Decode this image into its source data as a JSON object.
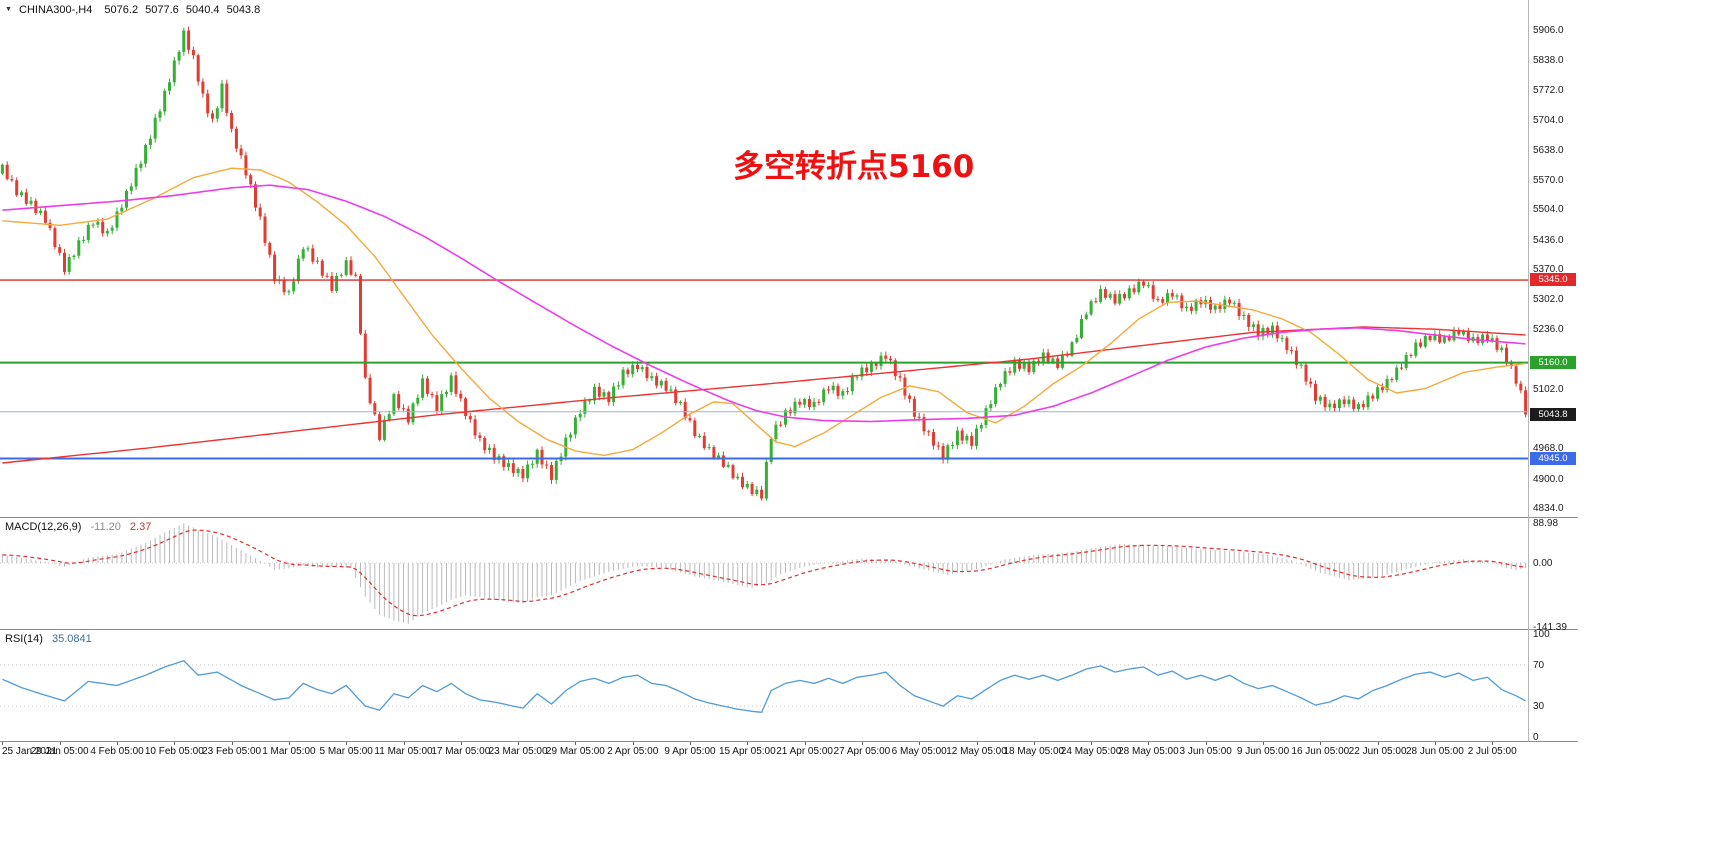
{
  "header": {
    "expander_icon": "▼",
    "symbol_tf": "CHINA300-,H4",
    "open": "5076.2",
    "high": "5077.6",
    "low": "5040.4",
    "close": "5043.8"
  },
  "annotation": {
    "text": "多空转折点5160",
    "color": "#ee1111"
  },
  "price_axis": {
    "min": 4834,
    "max": 5906,
    "ticks": [
      5906,
      5838,
      5772,
      5704,
      5638,
      5570,
      5504,
      5436,
      5370,
      5302,
      5236,
      5102,
      4968,
      4900,
      4834
    ],
    "tags": [
      {
        "label": "5345.0",
        "price": 5345,
        "bg": "#e22828",
        "fg": "#ffffff"
      },
      {
        "label": "5160.0",
        "price": 5160,
        "bg": "#2aa12a",
        "fg": "#ffffff"
      },
      {
        "label": "4945.0",
        "price": 4945,
        "bg": "#3d6be8",
        "fg": "#ffffff"
      },
      {
        "label": "5043.8",
        "price": 5043.8,
        "bg": "#1c1c1c",
        "fg": "#ffffff"
      }
    ]
  },
  "hlines": [
    {
      "price": 5345,
      "color": "#e22828",
      "width": 1.4
    },
    {
      "price": 5160,
      "color": "#2aa12a",
      "width": 2
    },
    {
      "price": 4945,
      "color": "#3d6be8",
      "width": 2
    },
    {
      "price": 5050,
      "color": "#9db3cf",
      "width": 1
    }
  ],
  "time_axis": {
    "labels": [
      "25 Jan 2021",
      "29 Jan 05:00",
      "4 Feb 05:00",
      "10 Feb 05:00",
      "23 Feb 05:00",
      "1 Mar 05:00",
      "5 Mar 05:00",
      "11 Mar 05:00",
      "17 Mar 05:00",
      "23 Mar 05:00",
      "29 Mar 05:00",
      "2 Apr 05:00",
      "9 Apr 05:00",
      "15 Apr 05:00",
      "21 Apr 05:00",
      "27 Apr 05:00",
      "6 May 05:00",
      "12 May 05:00",
      "18 May 05:00",
      "24 May 05:00",
      "28 May 05:00",
      "3 Jun 05:00",
      "9 Jun 05:00",
      "16 Jun 05:00",
      "22 Jun 05:00",
      "28 Jun 05:00",
      "2 Jul 05:00"
    ]
  },
  "macd_panel": {
    "title": "MACD(12,26,9)",
    "main_value": "-11.20",
    "signal_value": "2.37",
    "axis_ticks": [
      88.98,
      0,
      -141.39
    ],
    "histogram_color": "#b9b9b9",
    "signal_color": "#e03030"
  },
  "rsi_panel": {
    "title": "RSI(14)",
    "value": "35.0841",
    "axis_ticks": [
      100,
      70,
      30,
      0
    ],
    "levels": [
      70,
      30
    ],
    "line_color": "#4f9bd8"
  },
  "chart_data": {
    "type": "candlestick",
    "symbol": "CHINA300-",
    "timeframe": "H4",
    "date_range": [
      "25 Jan 2021",
      "2 Jul 2021"
    ],
    "last_bar": {
      "open": 5076.2,
      "high": 5077.6,
      "low": 5040.4,
      "close": 5043.8
    },
    "ylim": [
      4834,
      5906
    ],
    "n_bars": 320,
    "up_color": "#35b035",
    "down_color": "#e03c31",
    "ma_fast_color": "#f5a93c",
    "ma_mid_color": "#ea3ee8",
    "ma_slow_color": "#ee3333",
    "close_path": [
      [
        0,
        5600
      ],
      [
        3,
        5545
      ],
      [
        6,
        5515
      ],
      [
        9,
        5480
      ],
      [
        13,
        5368
      ],
      [
        16,
        5425
      ],
      [
        19,
        5478
      ],
      [
        22,
        5450
      ],
      [
        26,
        5540
      ],
      [
        30,
        5640
      ],
      [
        34,
        5760
      ],
      [
        38,
        5895
      ],
      [
        40,
        5840
      ],
      [
        42,
        5755
      ],
      [
        44,
        5700
      ],
      [
        46,
        5780
      ],
      [
        48,
        5680
      ],
      [
        51,
        5590
      ],
      [
        54,
        5480
      ],
      [
        57,
        5350
      ],
      [
        60,
        5310
      ],
      [
        63,
        5420
      ],
      [
        66,
        5380
      ],
      [
        69,
        5330
      ],
      [
        72,
        5385
      ],
      [
        74,
        5350
      ],
      [
        76,
        5120
      ],
      [
        79,
        4995
      ],
      [
        82,
        5080
      ],
      [
        85,
        5030
      ],
      [
        88,
        5115
      ],
      [
        91,
        5060
      ],
      [
        94,
        5125
      ],
      [
        97,
        5050
      ],
      [
        100,
        4985
      ],
      [
        103,
        4950
      ],
      [
        106,
        4925
      ],
      [
        109,
        4905
      ],
      [
        112,
        4955
      ],
      [
        115,
        4905
      ],
      [
        118,
        4985
      ],
      [
        121,
        5055
      ],
      [
        124,
        5100
      ],
      [
        127,
        5080
      ],
      [
        130,
        5135
      ],
      [
        133,
        5150
      ],
      [
        136,
        5120
      ],
      [
        139,
        5105
      ],
      [
        142,
        5065
      ],
      [
        145,
        5005
      ],
      [
        148,
        4965
      ],
      [
        151,
        4935
      ],
      [
        154,
        4895
      ],
      [
        157,
        4870
      ],
      [
        159,
        4860
      ],
      [
        161,
        4995
      ],
      [
        164,
        5045
      ],
      [
        167,
        5075
      ],
      [
        170,
        5068
      ],
      [
        173,
        5108
      ],
      [
        176,
        5088
      ],
      [
        179,
        5135
      ],
      [
        182,
        5148
      ],
      [
        185,
        5175
      ],
      [
        188,
        5118
      ],
      [
        191,
        5048
      ],
      [
        194,
        5000
      ],
      [
        197,
        4952
      ],
      [
        200,
        5000
      ],
      [
        203,
        4980
      ],
      [
        206,
        5048
      ],
      [
        209,
        5118
      ],
      [
        212,
        5158
      ],
      [
        215,
        5148
      ],
      [
        218,
        5178
      ],
      [
        221,
        5158
      ],
      [
        224,
        5198
      ],
      [
        227,
        5275
      ],
      [
        230,
        5315
      ],
      [
        233,
        5298
      ],
      [
        236,
        5318
      ],
      [
        239,
        5342
      ],
      [
        242,
        5298
      ],
      [
        245,
        5318
      ],
      [
        248,
        5278
      ],
      [
        251,
        5298
      ],
      [
        254,
        5278
      ],
      [
        257,
        5298
      ],
      [
        260,
        5258
      ],
      [
        263,
        5228
      ],
      [
        266,
        5238
      ],
      [
        269,
        5198
      ],
      [
        272,
        5148
      ],
      [
        275,
        5082
      ],
      [
        278,
        5058
      ],
      [
        281,
        5072
      ],
      [
        284,
        5058
      ],
      [
        287,
        5088
      ],
      [
        290,
        5118
      ],
      [
        293,
        5158
      ],
      [
        296,
        5198
      ],
      [
        299,
        5218
      ],
      [
        302,
        5208
      ],
      [
        305,
        5228
      ],
      [
        308,
        5208
      ],
      [
        311,
        5218
      ],
      [
        314,
        5188
      ],
      [
        316,
        5148
      ],
      [
        318,
        5098
      ],
      [
        319,
        5043.8
      ]
    ],
    "ma_fast_path": [
      [
        0,
        5478
      ],
      [
        12,
        5468
      ],
      [
        22,
        5482
      ],
      [
        32,
        5530
      ],
      [
        40,
        5575
      ],
      [
        48,
        5596
      ],
      [
        54,
        5592
      ],
      [
        60,
        5565
      ],
      [
        66,
        5520
      ],
      [
        72,
        5468
      ],
      [
        78,
        5398
      ],
      [
        84,
        5310
      ],
      [
        90,
        5222
      ],
      [
        96,
        5148
      ],
      [
        102,
        5080
      ],
      [
        108,
        5028
      ],
      [
        114,
        4988
      ],
      [
        120,
        4962
      ],
      [
        126,
        4952
      ],
      [
        132,
        4965
      ],
      [
        138,
        5002
      ],
      [
        144,
        5045
      ],
      [
        149,
        5072
      ],
      [
        153,
        5068
      ],
      [
        158,
        5020
      ],
      [
        162,
        4982
      ],
      [
        166,
        4972
      ],
      [
        172,
        5002
      ],
      [
        178,
        5042
      ],
      [
        184,
        5082
      ],
      [
        190,
        5108
      ],
      [
        196,
        5095
      ],
      [
        202,
        5048
      ],
      [
        208,
        5025
      ],
      [
        214,
        5062
      ],
      [
        220,
        5112
      ],
      [
        226,
        5152
      ],
      [
        232,
        5202
      ],
      [
        238,
        5258
      ],
      [
        244,
        5295
      ],
      [
        250,
        5298
      ],
      [
        256,
        5288
      ],
      [
        262,
        5278
      ],
      [
        268,
        5258
      ],
      [
        274,
        5228
      ],
      [
        280,
        5178
      ],
      [
        286,
        5122
      ],
      [
        292,
        5092
      ],
      [
        298,
        5102
      ],
      [
        306,
        5138
      ],
      [
        313,
        5150
      ],
      [
        319,
        5158
      ]
    ],
    "ma_mid_path": [
      [
        0,
        5502
      ],
      [
        12,
        5512
      ],
      [
        24,
        5522
      ],
      [
        36,
        5535
      ],
      [
        48,
        5552
      ],
      [
        56,
        5558
      ],
      [
        64,
        5548
      ],
      [
        72,
        5522
      ],
      [
        80,
        5488
      ],
      [
        88,
        5445
      ],
      [
        96,
        5395
      ],
      [
        104,
        5342
      ],
      [
        112,
        5292
      ],
      [
        120,
        5242
      ],
      [
        128,
        5195
      ],
      [
        136,
        5152
      ],
      [
        144,
        5112
      ],
      [
        152,
        5075
      ],
      [
        158,
        5052
      ],
      [
        164,
        5038
      ],
      [
        172,
        5030
      ],
      [
        182,
        5028
      ],
      [
        192,
        5032
      ],
      [
        202,
        5035
      ],
      [
        212,
        5042
      ],
      [
        220,
        5062
      ],
      [
        228,
        5092
      ],
      [
        236,
        5128
      ],
      [
        244,
        5165
      ],
      [
        252,
        5195
      ],
      [
        260,
        5215
      ],
      [
        268,
        5228
      ],
      [
        276,
        5235
      ],
      [
        284,
        5238
      ],
      [
        292,
        5232
      ],
      [
        300,
        5222
      ],
      [
        308,
        5212
      ],
      [
        319,
        5202
      ]
    ],
    "ma_slow_path": [
      [
        0,
        4935
      ],
      [
        30,
        4968
      ],
      [
        60,
        5005
      ],
      [
        90,
        5042
      ],
      [
        126,
        5080
      ],
      [
        160,
        5112
      ],
      [
        190,
        5142
      ],
      [
        215,
        5168
      ],
      [
        240,
        5200
      ],
      [
        262,
        5228
      ],
      [
        285,
        5240
      ],
      [
        300,
        5235
      ],
      [
        319,
        5222
      ]
    ],
    "macd_path": [
      [
        0,
        18
      ],
      [
        6,
        8
      ],
      [
        10,
        0
      ],
      [
        13,
        -8
      ],
      [
        18,
        12
      ],
      [
        24,
        20
      ],
      [
        30,
        45
      ],
      [
        34,
        68
      ],
      [
        38,
        88
      ],
      [
        41,
        74
      ],
      [
        45,
        58
      ],
      [
        50,
        28
      ],
      [
        54,
        5
      ],
      [
        57,
        -15
      ],
      [
        60,
        -12
      ],
      [
        63,
        -5
      ],
      [
        66,
        -10
      ],
      [
        70,
        -8
      ],
      [
        73,
        -12
      ],
      [
        76,
        -75
      ],
      [
        79,
        -115
      ],
      [
        82,
        -128
      ],
      [
        85,
        -135
      ],
      [
        88,
        -112
      ],
      [
        91,
        -98
      ],
      [
        94,
        -82
      ],
      [
        97,
        -72
      ],
      [
        100,
        -76
      ],
      [
        103,
        -82
      ],
      [
        106,
        -86
      ],
      [
        109,
        -90
      ],
      [
        112,
        -76
      ],
      [
        115,
        -72
      ],
      [
        118,
        -56
      ],
      [
        121,
        -40
      ],
      [
        127,
        -20
      ],
      [
        133,
        -6
      ],
      [
        139,
        -12
      ],
      [
        145,
        -30
      ],
      [
        151,
        -42
      ],
      [
        157,
        -56
      ],
      [
        160,
        -45
      ],
      [
        163,
        -25
      ],
      [
        168,
        -8
      ],
      [
        174,
        2
      ],
      [
        180,
        10
      ],
      [
        186,
        6
      ],
      [
        192,
        -12
      ],
      [
        198,
        -26
      ],
      [
        204,
        -14
      ],
      [
        210,
        8
      ],
      [
        216,
        18
      ],
      [
        222,
        22
      ],
      [
        228,
        32
      ],
      [
        234,
        42
      ],
      [
        240,
        40
      ],
      [
        246,
        36
      ],
      [
        252,
        30
      ],
      [
        258,
        26
      ],
      [
        264,
        20
      ],
      [
        270,
        6
      ],
      [
        276,
        -22
      ],
      [
        282,
        -38
      ],
      [
        288,
        -32
      ],
      [
        294,
        -14
      ],
      [
        300,
        2
      ],
      [
        306,
        8
      ],
      [
        311,
        4
      ],
      [
        314,
        -8
      ],
      [
        317,
        -16
      ],
      [
        319,
        -11.2
      ]
    ],
    "rsi_path": [
      [
        0,
        56
      ],
      [
        4,
        48
      ],
      [
        8,
        42
      ],
      [
        13,
        35
      ],
      [
        18,
        54
      ],
      [
        24,
        50
      ],
      [
        30,
        60
      ],
      [
        34,
        68
      ],
      [
        38,
        74
      ],
      [
        41,
        60
      ],
      [
        45,
        63
      ],
      [
        50,
        50
      ],
      [
        54,
        42
      ],
      [
        57,
        36
      ],
      [
        60,
        38
      ],
      [
        63,
        52
      ],
      [
        66,
        46
      ],
      [
        69,
        42
      ],
      [
        72,
        50
      ],
      [
        76,
        30
      ],
      [
        79,
        26
      ],
      [
        82,
        42
      ],
      [
        85,
        38
      ],
      [
        88,
        50
      ],
      [
        91,
        44
      ],
      [
        94,
        52
      ],
      [
        97,
        42
      ],
      [
        100,
        36
      ],
      [
        103,
        34
      ],
      [
        106,
        31
      ],
      [
        109,
        28
      ],
      [
        112,
        42
      ],
      [
        115,
        32
      ],
      [
        118,
        45
      ],
      [
        121,
        54
      ],
      [
        124,
        57
      ],
      [
        127,
        52
      ],
      [
        130,
        58
      ],
      [
        133,
        60
      ],
      [
        136,
        52
      ],
      [
        139,
        50
      ],
      [
        142,
        44
      ],
      [
        145,
        37
      ],
      [
        148,
        33
      ],
      [
        151,
        30
      ],
      [
        154,
        27
      ],
      [
        157,
        25
      ],
      [
        159,
        24
      ],
      [
        161,
        45
      ],
      [
        164,
        52
      ],
      [
        167,
        55
      ],
      [
        170,
        52
      ],
      [
        173,
        57
      ],
      [
        176,
        52
      ],
      [
        179,
        58
      ],
      [
        182,
        60
      ],
      [
        185,
        63
      ],
      [
        188,
        50
      ],
      [
        191,
        40
      ],
      [
        194,
        35
      ],
      [
        197,
        30
      ],
      [
        200,
        40
      ],
      [
        203,
        37
      ],
      [
        206,
        46
      ],
      [
        209,
        55
      ],
      [
        212,
        60
      ],
      [
        215,
        56
      ],
      [
        218,
        60
      ],
      [
        221,
        55
      ],
      [
        224,
        60
      ],
      [
        227,
        66
      ],
      [
        230,
        69
      ],
      [
        233,
        63
      ],
      [
        236,
        66
      ],
      [
        239,
        68
      ],
      [
        242,
        60
      ],
      [
        245,
        64
      ],
      [
        248,
        56
      ],
      [
        251,
        60
      ],
      [
        254,
        55
      ],
      [
        257,
        60
      ],
      [
        260,
        52
      ],
      [
        263,
        47
      ],
      [
        266,
        50
      ],
      [
        269,
        44
      ],
      [
        272,
        38
      ],
      [
        275,
        31
      ],
      [
        278,
        34
      ],
      [
        281,
        40
      ],
      [
        284,
        37
      ],
      [
        287,
        45
      ],
      [
        290,
        50
      ],
      [
        293,
        56
      ],
      [
        296,
        61
      ],
      [
        299,
        63
      ],
      [
        302,
        58
      ],
      [
        305,
        62
      ],
      [
        308,
        55
      ],
      [
        311,
        58
      ],
      [
        314,
        46
      ],
      [
        317,
        40
      ],
      [
        319,
        35.08
      ]
    ]
  }
}
